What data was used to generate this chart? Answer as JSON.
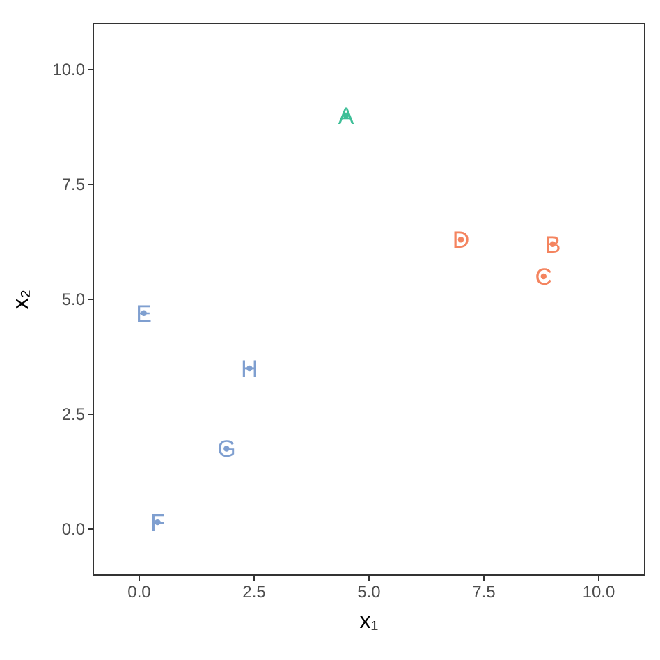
{
  "chart_data": {
    "type": "scatter",
    "xlabel": "x₁",
    "ylabel": "x₂",
    "xlim": [
      -1,
      11
    ],
    "ylim": [
      -1,
      11
    ],
    "xticks": [
      {
        "value": 0,
        "label": "0.0"
      },
      {
        "value": 2.5,
        "label": "2.5"
      },
      {
        "value": 5,
        "label": "5.0"
      },
      {
        "value": 7.5,
        "label": "7.5"
      },
      {
        "value": 10,
        "label": "10.0"
      }
    ],
    "yticks": [
      {
        "value": 0,
        "label": "0.0"
      },
      {
        "value": 2.5,
        "label": "2.5"
      },
      {
        "value": 5,
        "label": "5.0"
      },
      {
        "value": 7.5,
        "label": "7.5"
      },
      {
        "value": 10,
        "label": "10.0"
      }
    ],
    "grid": false,
    "marker": "circle",
    "series": [
      {
        "color": "#3fbf98",
        "x": [
          4.5
        ],
        "values": [
          9.0
        ],
        "value_labels": [
          "A"
        ]
      },
      {
        "color": "#f4845f",
        "x": [
          9.0,
          8.8,
          7.0
        ],
        "values": [
          6.2,
          5.5,
          6.3
        ],
        "value_labels": [
          "B",
          "C",
          "D"
        ]
      },
      {
        "color": "#7f9fd0",
        "x": [
          0.1,
          0.4,
          1.9,
          2.4
        ],
        "values": [
          4.7,
          0.15,
          1.75,
          3.5
        ],
        "value_labels": [
          "E",
          "F",
          "G",
          "H"
        ]
      }
    ]
  }
}
